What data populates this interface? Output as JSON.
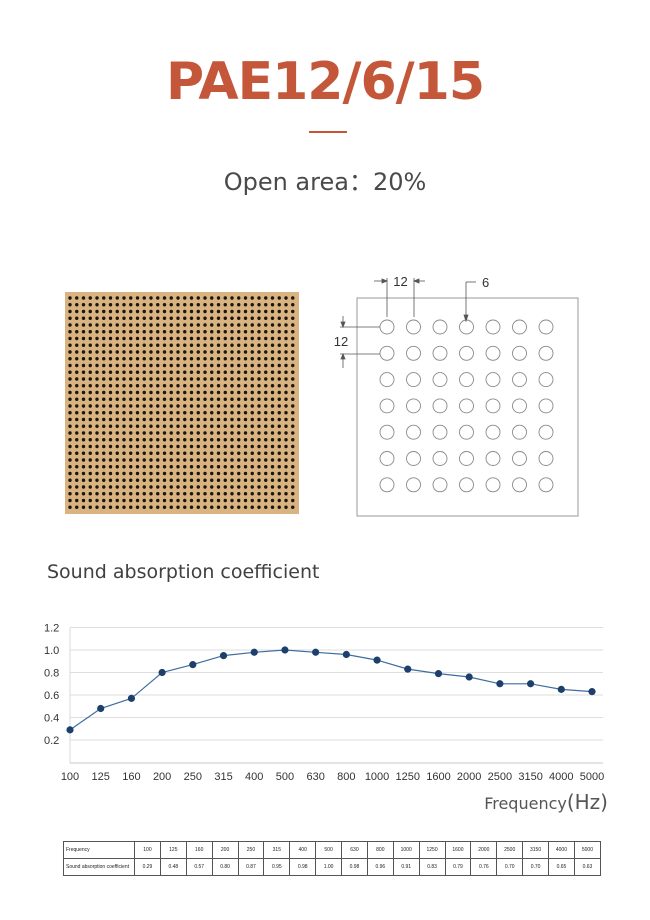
{
  "colors": {
    "accent": "#c4573a",
    "series": "#3f6d9f",
    "marker": "#1e3f6c",
    "panel": "#d9b481",
    "hole": "#1a1510"
  },
  "header": {
    "title": "PAE12/6/15",
    "open_area_label": "Open area：",
    "open_area_value": "20%"
  },
  "product_photo": {
    "icon": "perforated-panel-image"
  },
  "diagram": {
    "pitch_label": "12",
    "hole_label": "6",
    "row_pitch_label": "12"
  },
  "section": {
    "heading": "Sound absorption coefficient"
  },
  "x_axis": {
    "label_prefix": "Frequency",
    "label_unit": "(Hz)"
  },
  "chart_data": {
    "type": "line",
    "title": "Sound absorption coefficient",
    "xlabel": "Frequency(Hz)",
    "ylabel": "",
    "categories": [
      "100",
      "125",
      "160",
      "200",
      "250",
      "315",
      "400",
      "500",
      "630",
      "800",
      "1000",
      "1250",
      "1600",
      "2000",
      "2500",
      "3150",
      "4000",
      "5000"
    ],
    "values": [
      0.29,
      0.48,
      0.57,
      0.8,
      0.87,
      0.95,
      0.98,
      1.0,
      0.98,
      0.96,
      0.91,
      0.83,
      0.79,
      0.76,
      0.7,
      0.7,
      0.65,
      0.63
    ],
    "yticks": [
      "0.2",
      "0.4",
      "0.6",
      "0.8",
      "1.0",
      "1.2"
    ],
    "ylim": [
      0.2,
      1.2
    ],
    "grid": true
  },
  "table": {
    "row1_label": "Frequency",
    "row2_label": "Sound absorption coefficient",
    "frequencies": [
      "100",
      "125",
      "160",
      "200",
      "250",
      "315",
      "400",
      "500",
      "630",
      "800",
      "1000",
      "1250",
      "1600",
      "2000",
      "2500",
      "3150",
      "4000",
      "5000"
    ],
    "coefficients": [
      "0.29",
      "0.48",
      "0.57",
      "0.80",
      "0.87",
      "0.95",
      "0.98",
      "1.00",
      "0.98",
      "0.96",
      "0.91",
      "0.83",
      "0.79",
      "0.76",
      "0.70",
      "0.70",
      "0.65",
      "0.63"
    ]
  }
}
